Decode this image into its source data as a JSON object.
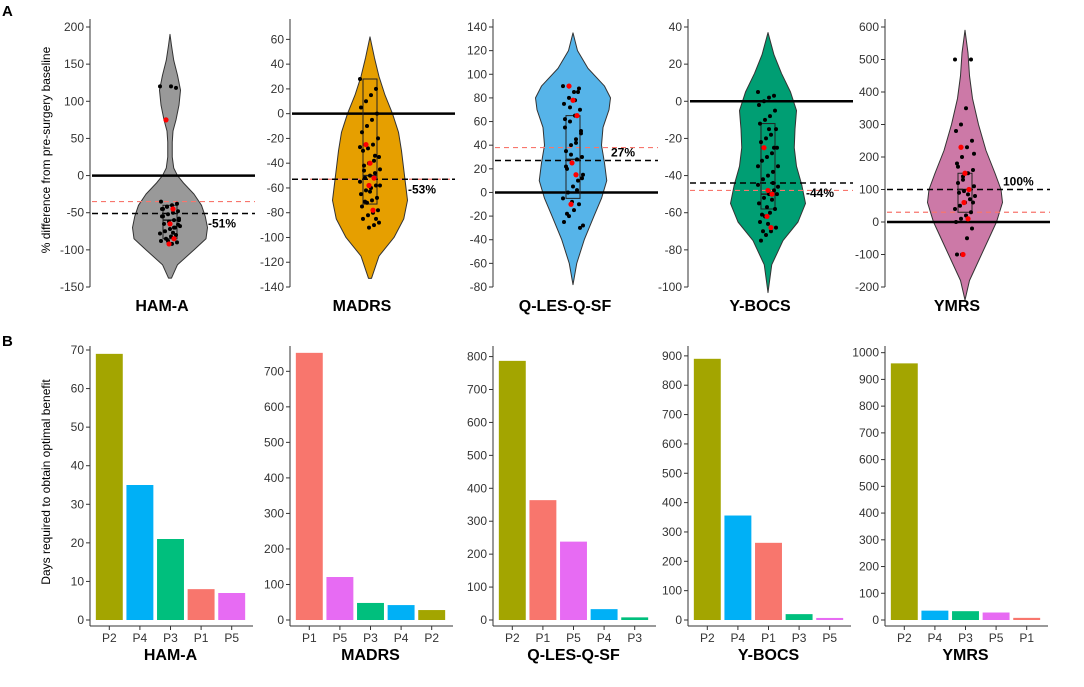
{
  "figure": {
    "panel_a_label": "A",
    "panel_b_label": "B",
    "panel_a_ylabel": "% difference from pre-surgery baseline",
    "panel_b_ylabel": "Days required to obtain optimal benefit"
  },
  "colors": {
    "P1": "#F8766D",
    "P2": "#A3A500",
    "P3": "#00BF7D",
    "P4": "#00B0F6",
    "P5": "#E76BF3",
    "zero_line": "#000000",
    "mean_line": "#000000",
    "ref_line": "#F8766D",
    "highlight_point": "#FF0000"
  },
  "chart_data": [
    {
      "type": "violin",
      "name": "HAM-A",
      "color": "#999999",
      "ylim": [
        -150,
        200
      ],
      "ticks": [
        -150,
        -100,
        -50,
        0,
        50,
        100,
        150,
        200
      ],
      "mean_pct": -51,
      "mean_label": "-51%",
      "ref_line": -35,
      "zero_line": 0,
      "box": {
        "q1": -85,
        "median": -60,
        "q3": -40
      },
      "violin_range": [
        -140,
        190
      ],
      "density": [
        [
          -138,
          0.02
        ],
        [
          -120,
          0.1
        ],
        [
          -100,
          0.32
        ],
        [
          -85,
          0.48
        ],
        [
          -70,
          0.5
        ],
        [
          -55,
          0.47
        ],
        [
          -40,
          0.42
        ],
        [
          -25,
          0.32
        ],
        [
          -10,
          0.18
        ],
        [
          0,
          0.1
        ],
        [
          10,
          0.05
        ],
        [
          25,
          0.03
        ],
        [
          45,
          0.03
        ],
        [
          60,
          0.04
        ],
        [
          75,
          0.08
        ],
        [
          95,
          0.12
        ],
        [
          115,
          0.14
        ],
        [
          135,
          0.1
        ],
        [
          155,
          0.05
        ],
        [
          175,
          0.02
        ],
        [
          190,
          0.0
        ]
      ],
      "points": [
        120,
        118,
        120,
        75,
        -35,
        -38,
        -40,
        -42,
        -45,
        -48,
        -50,
        -52,
        -55,
        -58,
        -60,
        -62,
        -65,
        -68,
        -70,
        -72,
        -75,
        -78,
        -80,
        -82,
        -85,
        -88,
        -90,
        -92,
        -42,
        -55,
        -66,
        -77,
        -88,
        -45,
        -60,
        -70
      ],
      "highlight_points": [
        75,
        -65,
        -85,
        -92,
        -45
      ]
    },
    {
      "type": "violin",
      "name": "MADRS",
      "color": "#E69F00",
      "ylim": [
        -140,
        70
      ],
      "ticks": [
        -140,
        -120,
        -100,
        -80,
        -60,
        -40,
        -20,
        0,
        20,
        40,
        60
      ],
      "mean_pct": -53,
      "mean_label": "-53%",
      "ref_line": -53,
      "zero_line": 0,
      "box": {
        "q1": -73,
        "median": -50,
        "q3": 28
      },
      "violin_range": [
        -133,
        62
      ],
      "density": [
        [
          -133,
          0.02
        ],
        [
          -115,
          0.12
        ],
        [
          -100,
          0.32
        ],
        [
          -85,
          0.45
        ],
        [
          -70,
          0.5
        ],
        [
          -60,
          0.48
        ],
        [
          -45,
          0.45
        ],
        [
          -30,
          0.42
        ],
        [
          -15,
          0.38
        ],
        [
          0,
          0.3
        ],
        [
          15,
          0.2
        ],
        [
          30,
          0.12
        ],
        [
          45,
          0.06
        ],
        [
          62,
          0.0
        ]
      ],
      "points": [
        28,
        20,
        15,
        10,
        5,
        0,
        -5,
        -10,
        -15,
        -20,
        -25,
        -28,
        -30,
        -35,
        -38,
        -40,
        -42,
        -45,
        -48,
        -50,
        -52,
        -55,
        -58,
        -60,
        -62,
        -65,
        -68,
        -70,
        -72,
        -75,
        -78,
        -80,
        -82,
        -85,
        -88,
        -90,
        -92,
        -46,
        -58,
        -34,
        -63,
        -71,
        -27,
        -85
      ],
      "highlight_points": [
        -25,
        -40,
        -52,
        -58,
        -78
      ]
    },
    {
      "type": "violin",
      "name": "Q-LES-Q-SF",
      "color": "#56B4E9",
      "ylim": [
        -80,
        140
      ],
      "ticks": [
        -80,
        -60,
        -40,
        -20,
        0,
        20,
        40,
        60,
        80,
        100,
        120,
        140
      ],
      "mean_pct": 27,
      "mean_label": "27%",
      "ref_line": 38,
      "zero_line": 0,
      "box": {
        "q1": -5,
        "median": 28,
        "q3": 65
      },
      "violin_range": [
        -78,
        135
      ],
      "density": [
        [
          -78,
          0.0
        ],
        [
          -60,
          0.05
        ],
        [
          -40,
          0.15
        ],
        [
          -20,
          0.28
        ],
        [
          -5,
          0.38
        ],
        [
          10,
          0.45
        ],
        [
          25,
          0.42
        ],
        [
          40,
          0.38
        ],
        [
          55,
          0.4
        ],
        [
          70,
          0.48
        ],
        [
          80,
          0.5
        ],
        [
          90,
          0.42
        ],
        [
          105,
          0.2
        ],
        [
          120,
          0.06
        ],
        [
          135,
          0.0
        ]
      ],
      "points": [
        90,
        88,
        85,
        80,
        75,
        70,
        65,
        60,
        55,
        50,
        45,
        40,
        35,
        30,
        28,
        25,
        20,
        15,
        10,
        5,
        0,
        -5,
        -10,
        -15,
        -20,
        -25,
        -30,
        78,
        72,
        62,
        52,
        42,
        32,
        22,
        12,
        2,
        -8,
        -18,
        -28,
        85
      ],
      "highlight_points": [
        90,
        78,
        65,
        25,
        15,
        -10
      ]
    },
    {
      "type": "violin",
      "name": "Y-BOCS",
      "color": "#009E73",
      "ylim": [
        -100,
        40
      ],
      "ticks": [
        -100,
        -80,
        -60,
        -40,
        -20,
        0,
        20,
        40
      ],
      "mean_pct": -44,
      "mean_label": "-44%",
      "ref_line": -48,
      "zero_line": 0,
      "box": {
        "q1": -58,
        "median": -50,
        "q3": -12
      },
      "violin_range": [
        -103,
        37
      ],
      "density": [
        [
          -103,
          0.0
        ],
        [
          -88,
          0.05
        ],
        [
          -75,
          0.2
        ],
        [
          -65,
          0.4
        ],
        [
          -55,
          0.5
        ],
        [
          -45,
          0.45
        ],
        [
          -35,
          0.38
        ],
        [
          -25,
          0.35
        ],
        [
          -15,
          0.36
        ],
        [
          -5,
          0.38
        ],
        [
          5,
          0.3
        ],
        [
          15,
          0.18
        ],
        [
          25,
          0.08
        ],
        [
          37,
          0.0
        ]
      ],
      "points": [
        5,
        3,
        2,
        0,
        -2,
        -5,
        -8,
        -10,
        -12,
        -15,
        -18,
        -20,
        -22,
        -25,
        -28,
        -30,
        -32,
        -35,
        -38,
        -40,
        -42,
        -45,
        -48,
        -50,
        -52,
        -55,
        -58,
        -60,
        -62,
        -65,
        -68,
        -70,
        -72,
        -75,
        -50,
        -53,
        -57,
        -61,
        -46,
        -44,
        -66,
        -70,
        -35,
        -25,
        -15
      ],
      "highlight_points": [
        -25,
        -48,
        -50,
        -62,
        -68
      ]
    },
    {
      "type": "violin",
      "name": "YMRS",
      "color": "#CC79A7",
      "ylim": [
        -200,
        600
      ],
      "ticks": [
        -200,
        -100,
        0,
        100,
        200,
        300,
        400,
        500,
        600
      ],
      "mean_pct": 100,
      "mean_label": "100%",
      "ref_line": 30,
      "zero_line": 0,
      "box": {
        "q1": 30,
        "median": 100,
        "q3": 150
      },
      "violin_range": [
        -240,
        590
      ],
      "density": [
        [
          -240,
          0.0
        ],
        [
          -180,
          0.06
        ],
        [
          -120,
          0.18
        ],
        [
          -60,
          0.3
        ],
        [
          0,
          0.42
        ],
        [
          60,
          0.5
        ],
        [
          100,
          0.48
        ],
        [
          150,
          0.4
        ],
        [
          220,
          0.28
        ],
        [
          300,
          0.18
        ],
        [
          380,
          0.1
        ],
        [
          450,
          0.06
        ],
        [
          520,
          0.04
        ],
        [
          590,
          0.0
        ]
      ],
      "points": [
        500,
        500,
        350,
        300,
        280,
        250,
        230,
        200,
        180,
        160,
        150,
        140,
        120,
        110,
        100,
        95,
        90,
        80,
        70,
        60,
        50,
        40,
        30,
        20,
        10,
        0,
        -20,
        -50,
        -100,
        -100,
        60,
        85,
        130,
        170,
        210
      ],
      "highlight_points": [
        230,
        150,
        100,
        60,
        10,
        -100
      ]
    }
  ],
  "bar_charts": [
    {
      "type": "bar",
      "name": "HAM-A",
      "ylim": [
        0,
        70
      ],
      "ticks": [
        0,
        10,
        20,
        30,
        40,
        50,
        60,
        70
      ],
      "categories": [
        "P2",
        "P4",
        "P3",
        "P1",
        "P5"
      ],
      "values": [
        69,
        35,
        21,
        8,
        7
      ]
    },
    {
      "type": "bar",
      "name": "MADRS",
      "ylim": [
        0,
        760
      ],
      "ticks": [
        0,
        100,
        200,
        300,
        400,
        500,
        600,
        700
      ],
      "categories": [
        "P1",
        "P5",
        "P3",
        "P4",
        "P2"
      ],
      "values": [
        752,
        121,
        48,
        42,
        28
      ]
    },
    {
      "type": "bar",
      "name": "Q-LES-Q-SF",
      "ylim": [
        0,
        820
      ],
      "ticks": [
        0,
        100,
        200,
        300,
        400,
        500,
        600,
        700,
        800
      ],
      "categories": [
        "P2",
        "P1",
        "P5",
        "P4",
        "P3"
      ],
      "values": [
        787,
        364,
        238,
        33,
        8
      ]
    },
    {
      "type": "bar",
      "name": "Y-BOCS",
      "ylim": [
        0,
        920
      ],
      "ticks": [
        0,
        100,
        200,
        300,
        400,
        500,
        600,
        700,
        800,
        900
      ],
      "categories": [
        "P2",
        "P4",
        "P1",
        "P3",
        "P5"
      ],
      "values": [
        890,
        356,
        263,
        20,
        7
      ]
    },
    {
      "type": "bar",
      "name": "YMRS",
      "ylim": [
        0,
        1010
      ],
      "ticks": [
        0,
        100,
        200,
        300,
        400,
        500,
        600,
        700,
        800,
        900,
        1000
      ],
      "categories": [
        "P2",
        "P4",
        "P3",
        "P5",
        "P1"
      ],
      "values": [
        960,
        35,
        33,
        28,
        8
      ]
    }
  ]
}
